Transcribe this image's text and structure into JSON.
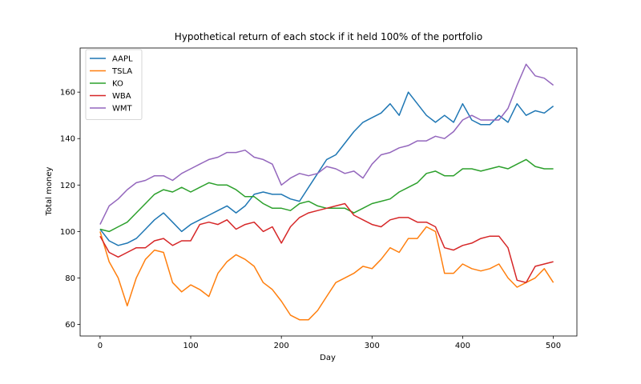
{
  "chart_data": {
    "type": "line",
    "title": "Hypothetical return of each stock if it held 100% of the portfolio",
    "xlabel": "Day",
    "ylabel": "Total money",
    "xlim": [
      -22,
      526
    ],
    "ylim": [
      55,
      179
    ],
    "xticks": [
      0,
      100,
      200,
      300,
      400,
      500
    ],
    "yticks": [
      60,
      80,
      100,
      120,
      140,
      160
    ],
    "grid": false,
    "legend_position": "upper left",
    "series": [
      {
        "name": "AAPL",
        "color": "#1f77b4",
        "x": [
          0,
          10,
          20,
          30,
          40,
          50,
          60,
          70,
          80,
          90,
          100,
          110,
          120,
          130,
          140,
          150,
          160,
          170,
          180,
          190,
          200,
          210,
          220,
          230,
          240,
          250,
          260,
          270,
          280,
          290,
          300,
          310,
          320,
          330,
          340,
          350,
          360,
          370,
          380,
          390,
          400,
          410,
          420,
          430,
          440,
          450,
          460,
          470,
          480,
          490,
          500
        ],
        "y": [
          101,
          96,
          94,
          95,
          97,
          101,
          105,
          108,
          104,
          100,
          103,
          105,
          107,
          109,
          111,
          108,
          111,
          116,
          117,
          116,
          116,
          114,
          113,
          119,
          125,
          131,
          133,
          138,
          143,
          147,
          149,
          151,
          155,
          150,
          160,
          155,
          150,
          147,
          150,
          147,
          155,
          148,
          146,
          146,
          150,
          147,
          155,
          150,
          152,
          151,
          154
        ]
      },
      {
        "name": "TSLA",
        "color": "#ff7f0e",
        "x": [
          0,
          10,
          20,
          30,
          40,
          50,
          60,
          70,
          80,
          90,
          100,
          110,
          120,
          130,
          140,
          150,
          160,
          170,
          180,
          190,
          200,
          210,
          220,
          230,
          240,
          250,
          260,
          270,
          280,
          290,
          300,
          310,
          320,
          330,
          340,
          350,
          360,
          370,
          380,
          390,
          400,
          410,
          420,
          430,
          440,
          450,
          460,
          470,
          480,
          490,
          500
        ],
        "y": [
          100,
          87,
          80,
          68,
          80,
          88,
          92,
          91,
          78,
          74,
          77,
          75,
          72,
          82,
          87,
          90,
          88,
          85,
          78,
          75,
          70,
          64,
          62,
          62,
          66,
          72,
          78,
          80,
          82,
          85,
          84,
          88,
          93,
          91,
          97,
          97,
          102,
          100,
          82,
          82,
          86,
          84,
          83,
          84,
          86,
          80,
          76,
          78,
          80,
          84,
          78
        ]
      },
      {
        "name": "KO",
        "color": "#2ca02c",
        "x": [
          0,
          10,
          20,
          30,
          40,
          50,
          60,
          70,
          80,
          90,
          100,
          110,
          120,
          130,
          140,
          150,
          160,
          170,
          180,
          190,
          200,
          210,
          220,
          230,
          240,
          250,
          260,
          270,
          280,
          290,
          300,
          310,
          320,
          330,
          340,
          350,
          360,
          370,
          380,
          390,
          400,
          410,
          420,
          430,
          440,
          450,
          460,
          470,
          480,
          490,
          500
        ],
        "y": [
          101,
          100,
          102,
          104,
          108,
          112,
          116,
          118,
          117,
          119,
          117,
          119,
          121,
          120,
          120,
          118,
          115,
          115,
          112,
          110,
          110,
          109,
          112,
          113,
          111,
          110,
          110,
          110,
          108,
          110,
          112,
          113,
          114,
          117,
          119,
          121,
          125,
          126,
          124,
          124,
          127,
          127,
          126,
          127,
          128,
          127,
          129,
          131,
          128,
          127,
          127
        ]
      },
      {
        "name": "WBA",
        "color": "#d62728",
        "x": [
          0,
          10,
          20,
          30,
          40,
          50,
          60,
          70,
          80,
          90,
          100,
          110,
          120,
          130,
          140,
          150,
          160,
          170,
          180,
          190,
          200,
          210,
          220,
          230,
          240,
          250,
          260,
          270,
          280,
          290,
          300,
          310,
          320,
          330,
          340,
          350,
          360,
          370,
          380,
          390,
          400,
          410,
          420,
          430,
          440,
          450,
          460,
          470,
          480,
          490,
          500
        ],
        "y": [
          98,
          91,
          89,
          91,
          93,
          93,
          96,
          97,
          94,
          96,
          96,
          103,
          104,
          103,
          105,
          101,
          103,
          104,
          100,
          102,
          95,
          102,
          106,
          108,
          109,
          110,
          111,
          112,
          107,
          105,
          103,
          102,
          105,
          106,
          106,
          104,
          104,
          102,
          93,
          92,
          94,
          95,
          97,
          98,
          98,
          93,
          79,
          78,
          85,
          86,
          87
        ]
      },
      {
        "name": "WMT",
        "color": "#9467bd",
        "x": [
          0,
          10,
          20,
          30,
          40,
          50,
          60,
          70,
          80,
          90,
          100,
          110,
          120,
          130,
          140,
          150,
          160,
          170,
          180,
          190,
          200,
          210,
          220,
          230,
          240,
          250,
          260,
          270,
          280,
          290,
          300,
          310,
          320,
          330,
          340,
          350,
          360,
          370,
          380,
          390,
          400,
          410,
          420,
          430,
          440,
          450,
          460,
          470,
          480,
          490,
          500
        ],
        "y": [
          103,
          111,
          114,
          118,
          121,
          122,
          124,
          124,
          122,
          125,
          127,
          129,
          131,
          132,
          134,
          134,
          135,
          132,
          131,
          129,
          120,
          123,
          125,
          124,
          125,
          128,
          127,
          125,
          126,
          123,
          129,
          133,
          134,
          136,
          137,
          139,
          139,
          141,
          140,
          143,
          148,
          150,
          148,
          148,
          148,
          153,
          163,
          172,
          167,
          166,
          163
        ]
      }
    ]
  }
}
